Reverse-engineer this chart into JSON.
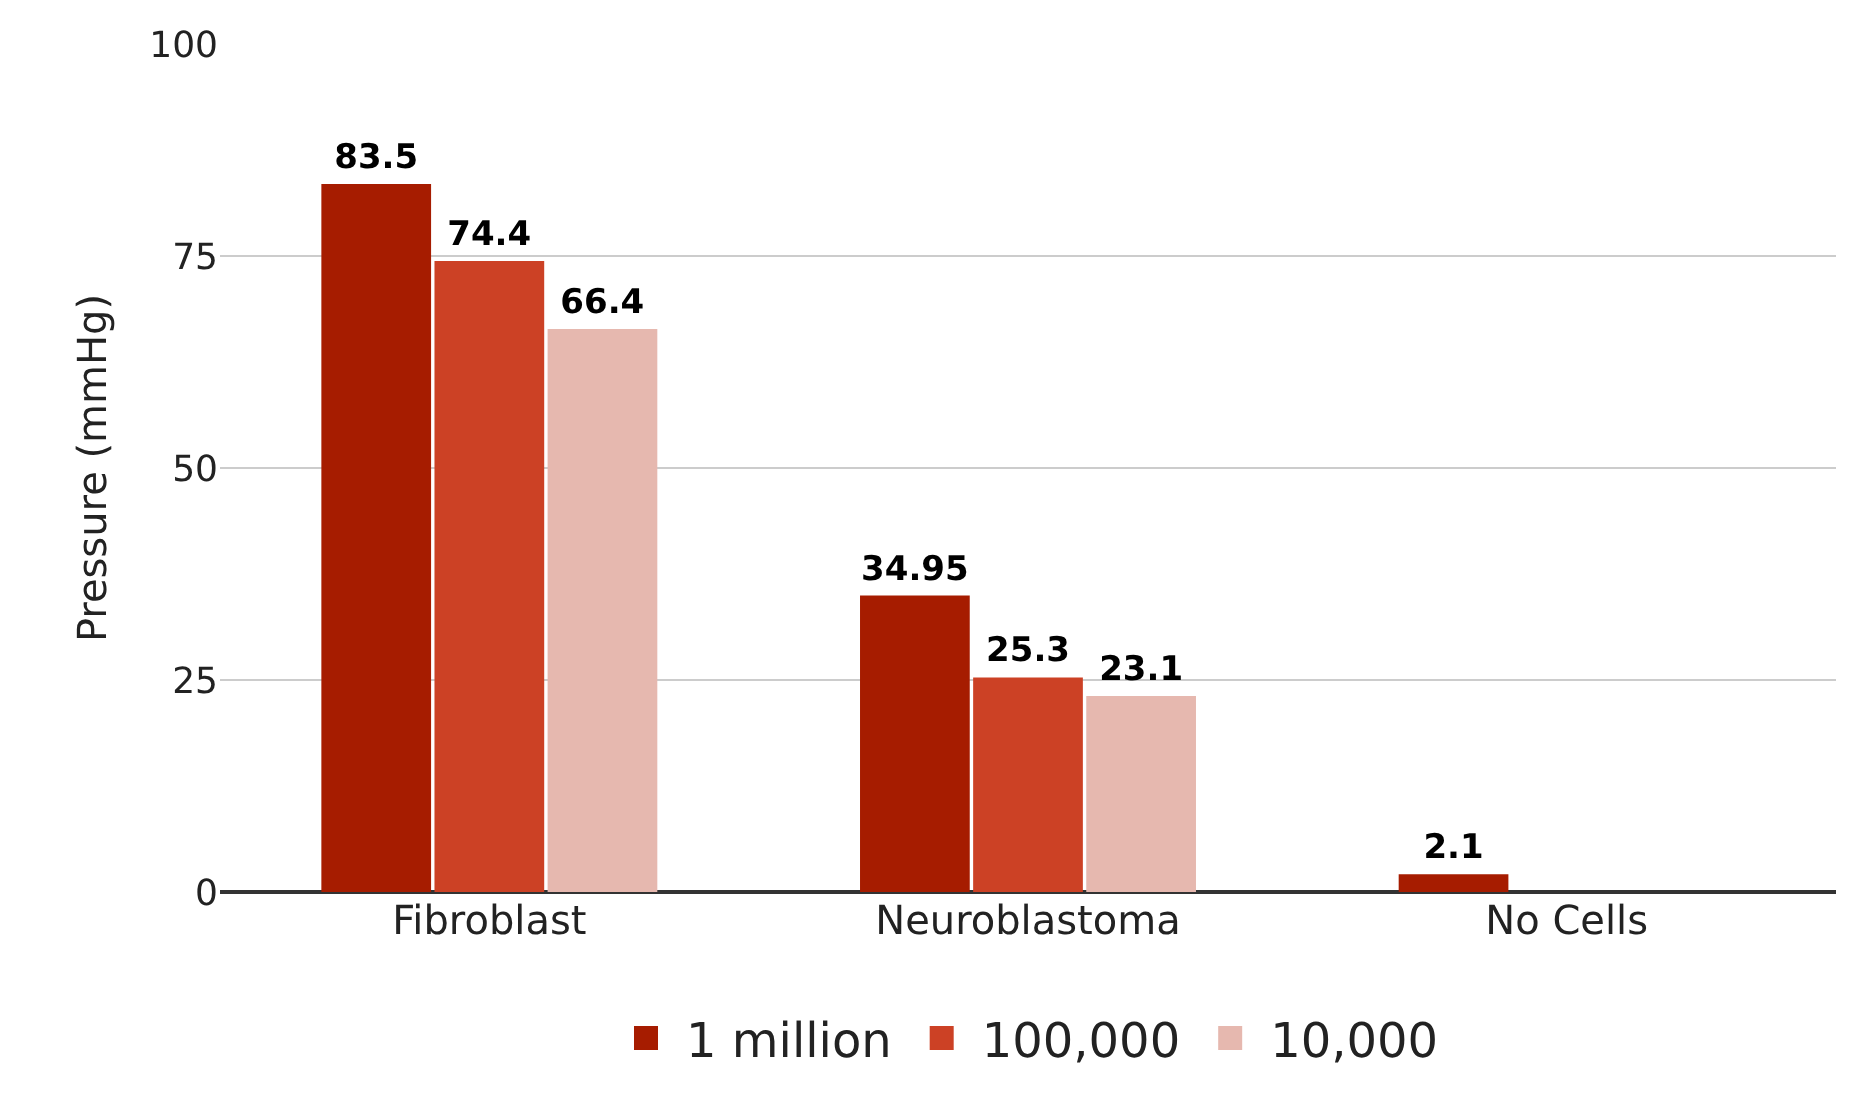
{
  "chart_data": {
    "type": "bar",
    "ylabel": "Pressure (mmHg)",
    "categories": [
      "Fibroblast",
      "Neuroblastoma",
      "No Cells"
    ],
    "series": [
      {
        "name": "1 million",
        "color": "#a61c00",
        "values": [
          83.5,
          34.95,
          2.1
        ]
      },
      {
        "name": "100,000",
        "color": "#cc4125",
        "values": [
          74.4,
          25.3,
          null
        ]
      },
      {
        "name": "10,000",
        "color": "#e6b8af",
        "values": [
          66.4,
          23.1,
          null
        ]
      }
    ],
    "ylim": [
      0,
      100
    ],
    "yticks": [
      0,
      25,
      50,
      75,
      100
    ],
    "grid": "y",
    "legend": "bottom",
    "data_labels": true
  }
}
